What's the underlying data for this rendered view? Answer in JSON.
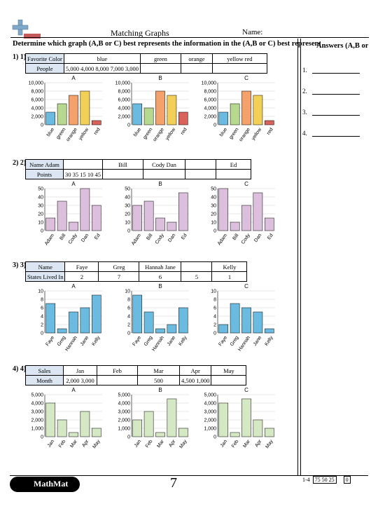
{
  "header": {
    "title": "Matching Graphs",
    "name_label": "Name:"
  },
  "instructions": "Determine which graph (A,B or C) best represents the information in the  (A,B or C) best represents the information",
  "answers_heading": "Answers (A,B or C)",
  "answer_numbers": [
    "1.",
    "2.",
    "3.",
    "4."
  ],
  "problems": [
    {
      "number": "1) 1)",
      "table": {
        "row1": [
          "Favorite Color",
          "blue",
          "green",
          "orange",
          "yellow red"
        ],
        "row2": [
          "People",
          "5,000 4,000 8,000 7,000 3,000",
          "",
          "",
          ""
        ]
      },
      "color": "mixed",
      "categories": [
        "blue",
        "green",
        "orange",
        "yellow",
        "red"
      ],
      "bar_colors": [
        "#6bbbe0",
        "#b7d98f",
        "#f5a16b",
        "#f2cf57",
        "#d9625a"
      ],
      "ymax": 10000,
      "yticks": [
        "10,000",
        "8,000",
        "6,000",
        "4,000",
        "2,000",
        "0"
      ],
      "graphs": [
        {
          "label": "A",
          "values": [
            3000,
            5000,
            7000,
            8000,
            1000
          ]
        },
        {
          "label": "B",
          "values": [
            5000,
            4000,
            8000,
            7000,
            3000
          ]
        },
        {
          "label": "C",
          "values": [
            3000,
            5000,
            8000,
            7000,
            1000
          ]
        }
      ]
    },
    {
      "number": "2) 2)",
      "table": {
        "row1": [
          "Name Adam",
          "",
          "Bill",
          "Cody Dan",
          "",
          "Ed"
        ],
        "row2": [
          "Points",
          "30 35 15 10 45",
          "",
          "",
          "",
          ""
        ]
      },
      "categories": [
        "Adam",
        "Bill",
        "Cody",
        "Dan",
        "Ed"
      ],
      "bar_colors": [
        "#dcbfdc",
        "#dcbfdc",
        "#dcbfdc",
        "#dcbfdc",
        "#dcbfdc"
      ],
      "ymax": 50,
      "yticks": [
        "50",
        "40",
        "30",
        "20",
        "10",
        "0"
      ],
      "graphs": [
        {
          "label": "A",
          "values": [
            15,
            35,
            10,
            50,
            30
          ]
        },
        {
          "label": "B",
          "values": [
            30,
            35,
            15,
            10,
            45
          ]
        },
        {
          "label": "C",
          "values": [
            50,
            10,
            30,
            45,
            15
          ]
        }
      ]
    },
    {
      "number": "3) 3)",
      "table": {
        "row1": [
          "Name",
          "Faye",
          "Greg",
          "Hannah Jane",
          "",
          "Kelly"
        ],
        "row2": [
          "States Lived In",
          "2",
          "7",
          "6",
          "5",
          "1"
        ]
      },
      "categories": [
        "Faye",
        "Greg",
        "Hannah",
        "Jane",
        "Kelly"
      ],
      "bar_colors": [
        "#6bbbe0",
        "#6bbbe0",
        "#6bbbe0",
        "#6bbbe0",
        "#6bbbe0"
      ],
      "ymax": 10,
      "yticks": [
        "10",
        "8",
        "6",
        "4",
        "2",
        "0"
      ],
      "graphs": [
        {
          "label": "A",
          "values": [
            7,
            1,
            5,
            6,
            9
          ]
        },
        {
          "label": "B",
          "values": [
            9,
            5,
            1,
            2,
            6
          ]
        },
        {
          "label": "C",
          "values": [
            2,
            7,
            6,
            5,
            1
          ]
        }
      ]
    },
    {
      "number": "4) 4)",
      "table": {
        "row1": [
          "Sales",
          "Jan",
          "Feb",
          "Mar",
          "Apr",
          "May"
        ],
        "row2": [
          "Month",
          "2,000 3,000",
          "",
          "500",
          "4,500 1,000",
          ""
        ]
      },
      "categories": [
        "Jan",
        "Feb",
        "Mar",
        "Apr",
        "May"
      ],
      "bar_colors": [
        "#d5e8c4",
        "#d5e8c4",
        "#d5e8c4",
        "#d5e8c4",
        "#d5e8c4"
      ],
      "ymax": 5000,
      "yticks": [
        "5,000",
        "4,000",
        "3,000",
        "2,000",
        "1,000",
        "0"
      ],
      "graphs": [
        {
          "label": "A",
          "values": [
            4000,
            2000,
            500,
            3000,
            1000
          ]
        },
        {
          "label": "B",
          "values": [
            2000,
            3000,
            500,
            4500,
            1000
          ]
        },
        {
          "label": "C",
          "values": [
            4000,
            500,
            4500,
            2000,
            1000
          ]
        }
      ]
    }
  ],
  "chart_data": [
    {
      "type": "bar",
      "title": "A",
      "categories": [
        "blue",
        "green",
        "orange",
        "yellow",
        "red"
      ],
      "values": [
        3000,
        5000,
        7000,
        8000,
        1000
      ],
      "ylim": [
        0,
        10000
      ]
    },
    {
      "type": "bar",
      "title": "B",
      "categories": [
        "blue",
        "green",
        "orange",
        "yellow",
        "red"
      ],
      "values": [
        5000,
        4000,
        8000,
        7000,
        3000
      ],
      "ylim": [
        0,
        10000
      ]
    },
    {
      "type": "bar",
      "title": "C",
      "categories": [
        "blue",
        "green",
        "orange",
        "yellow",
        "red"
      ],
      "values": [
        3000,
        5000,
        8000,
        7000,
        1000
      ],
      "ylim": [
        0,
        10000
      ]
    },
    {
      "type": "bar",
      "title": "A",
      "categories": [
        "Adam",
        "Bill",
        "Cody",
        "Dan",
        "Ed"
      ],
      "values": [
        15,
        35,
        10,
        50,
        30
      ],
      "ylim": [
        0,
        50
      ]
    },
    {
      "type": "bar",
      "title": "B",
      "categories": [
        "Adam",
        "Bill",
        "Cody",
        "Dan",
        "Ed"
      ],
      "values": [
        30,
        35,
        15,
        10,
        45
      ],
      "ylim": [
        0,
        50
      ]
    },
    {
      "type": "bar",
      "title": "C",
      "categories": [
        "Adam",
        "Bill",
        "Cody",
        "Dan",
        "Ed"
      ],
      "values": [
        50,
        10,
        30,
        45,
        15
      ],
      "ylim": [
        0,
        50
      ]
    },
    {
      "type": "bar",
      "title": "A",
      "categories": [
        "Faye",
        "Greg",
        "Hannah",
        "Jane",
        "Kelly"
      ],
      "values": [
        7,
        1,
        5,
        6,
        9
      ],
      "ylim": [
        0,
        10
      ]
    },
    {
      "type": "bar",
      "title": "B",
      "categories": [
        "Faye",
        "Greg",
        "Hannah",
        "Jane",
        "Kelly"
      ],
      "values": [
        9,
        5,
        1,
        2,
        6
      ],
      "ylim": [
        0,
        10
      ]
    },
    {
      "type": "bar",
      "title": "C",
      "categories": [
        "Faye",
        "Greg",
        "Hannah",
        "Jane",
        "Kelly"
      ],
      "values": [
        2,
        7,
        6,
        5,
        1
      ],
      "ylim": [
        0,
        10
      ]
    },
    {
      "type": "bar",
      "title": "A",
      "categories": [
        "Jan",
        "Feb",
        "Mar",
        "Apr",
        "May"
      ],
      "values": [
        4000,
        2000,
        500,
        3000,
        1000
      ],
      "ylim": [
        0,
        5000
      ]
    },
    {
      "type": "bar",
      "title": "B",
      "categories": [
        "Jan",
        "Feb",
        "Mar",
        "Apr",
        "May"
      ],
      "values": [
        2000,
        3000,
        500,
        4500,
        1000
      ],
      "ylim": [
        0,
        5000
      ]
    },
    {
      "type": "bar",
      "title": "C",
      "categories": [
        "Jan",
        "Feb",
        "Mar",
        "Apr",
        "May"
      ],
      "values": [
        4000,
        500,
        4500,
        2000,
        1000
      ],
      "ylim": [
        0,
        5000
      ]
    }
  ],
  "footer": {
    "logo_text": "MathMat",
    "page_number": "7",
    "score_range": "1-4",
    "score_values": "75 50 25",
    "score_zero": "0"
  }
}
